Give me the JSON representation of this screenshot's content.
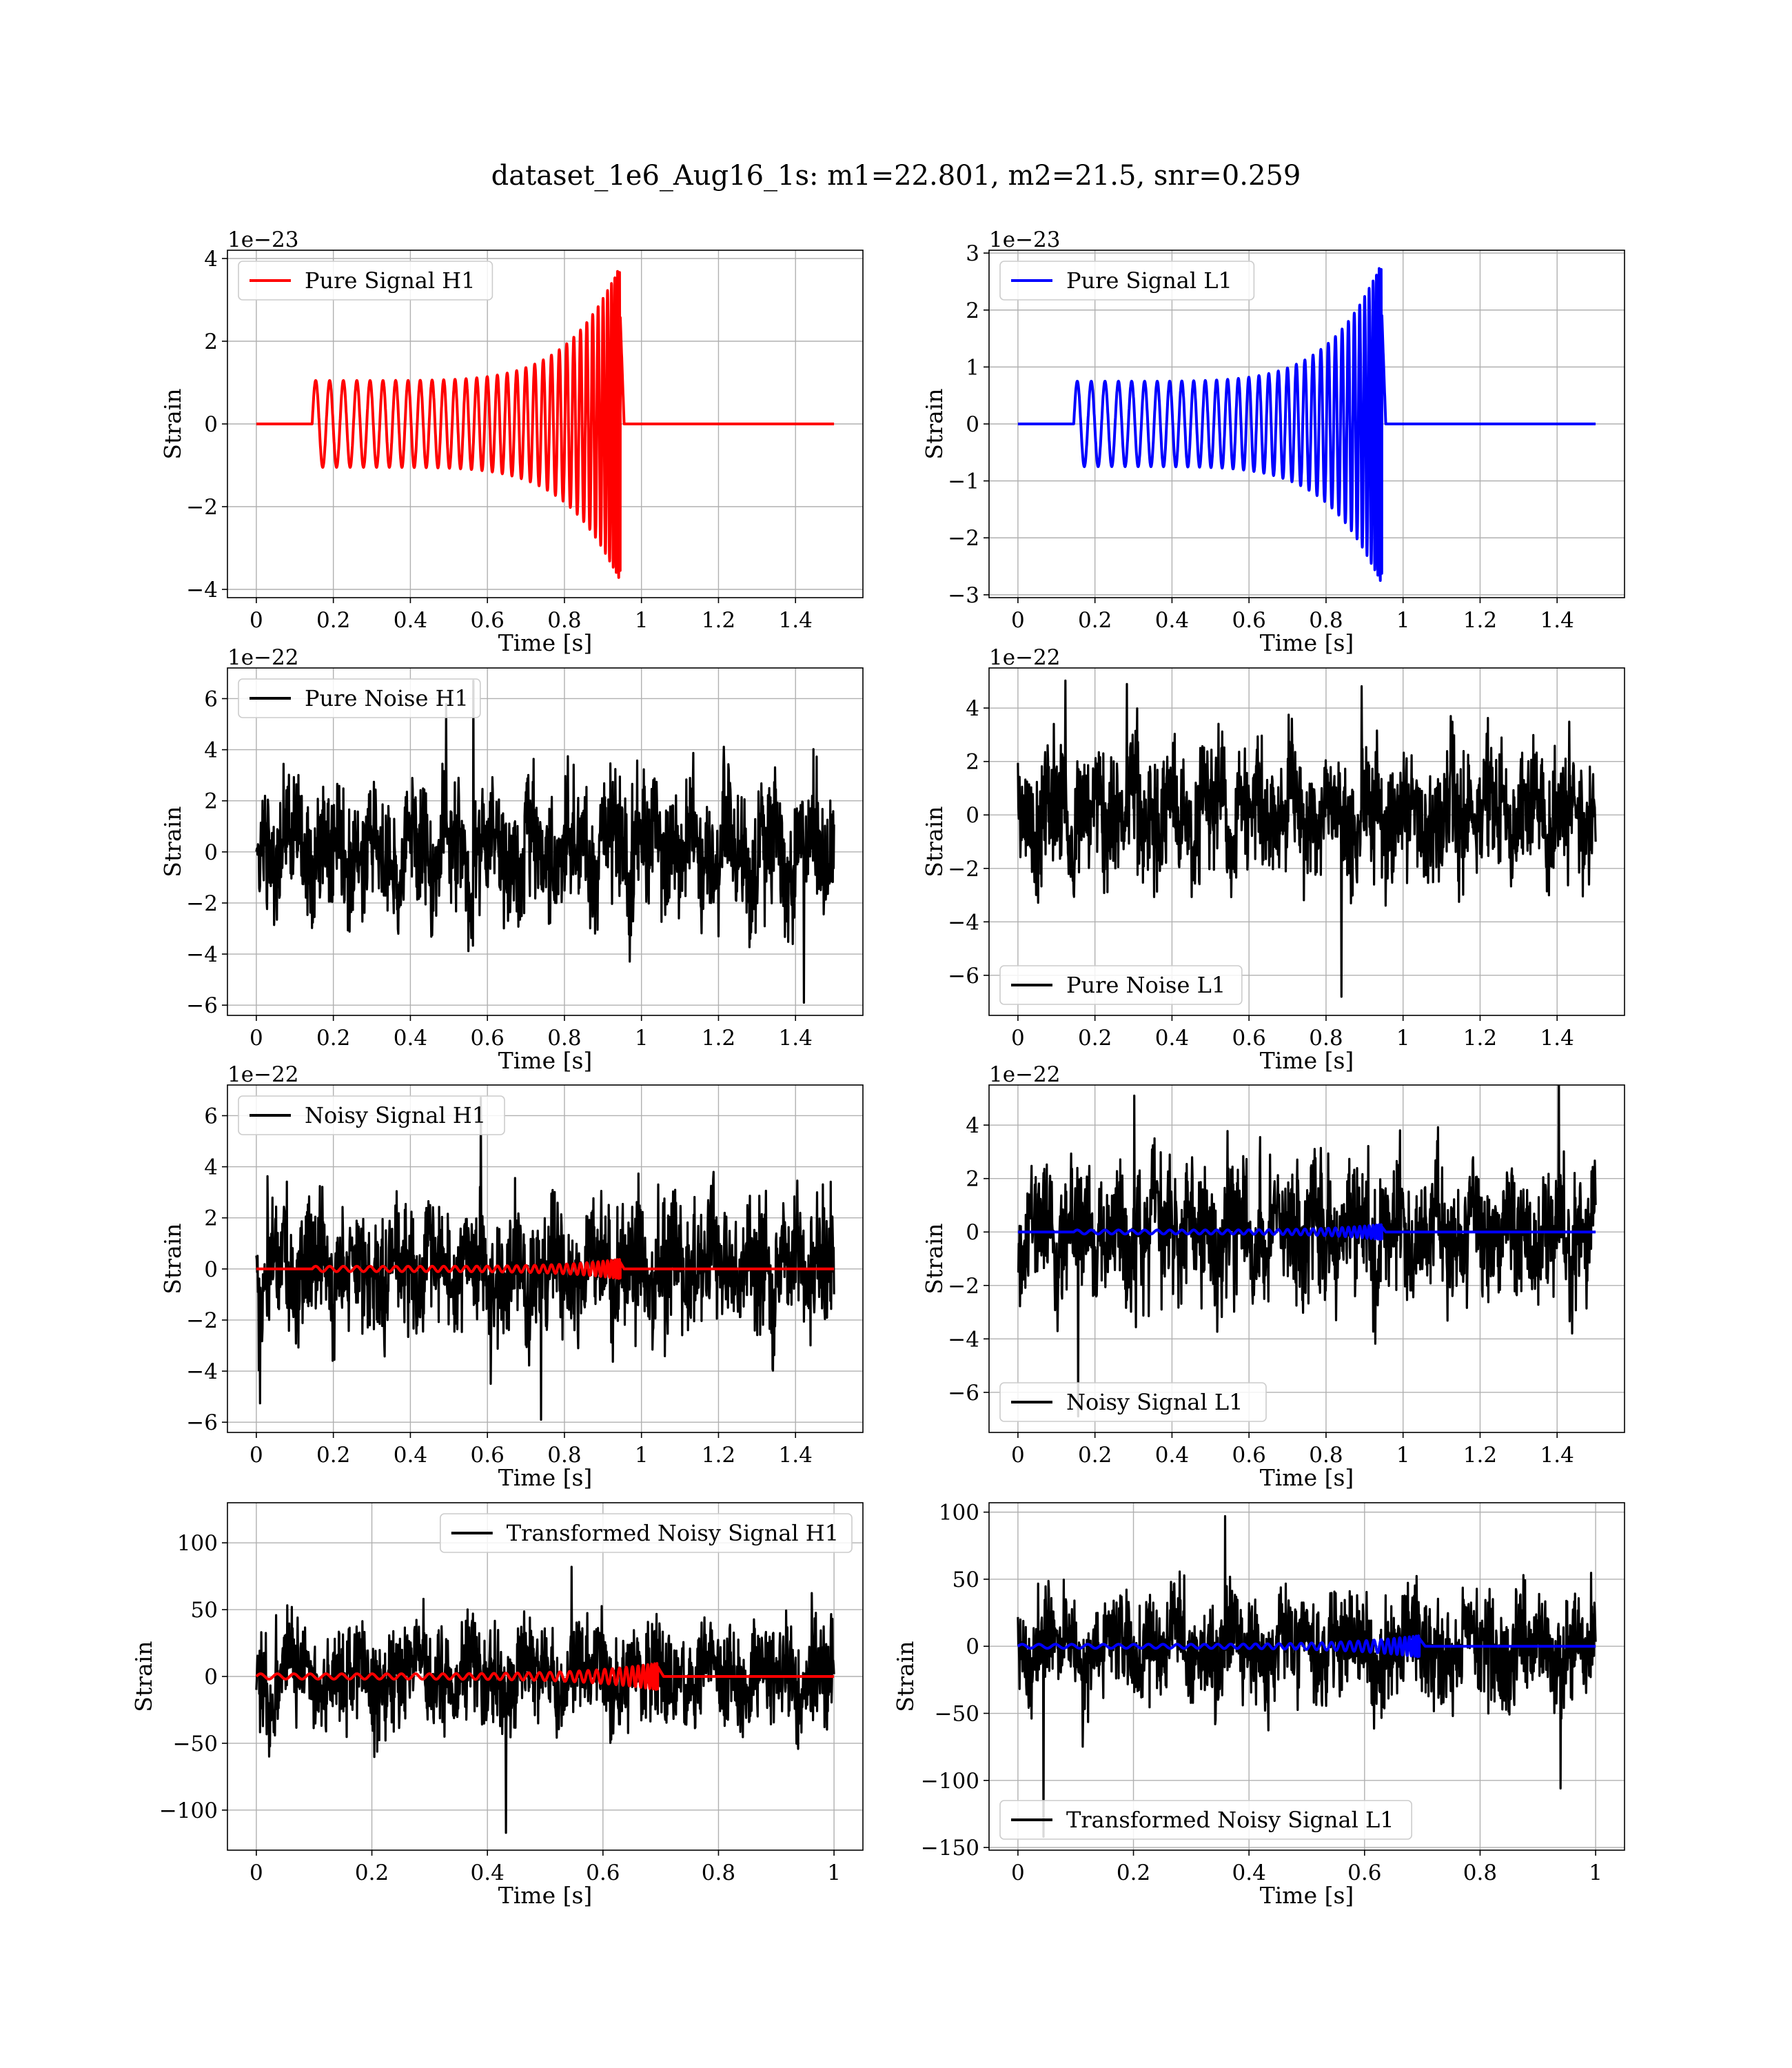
{
  "figure_title": "dataset_1e6_Aug16_1s: m1=22.801, m2=21.5, snr=0.259",
  "colors": {
    "signal_h1": "#ff0000",
    "signal_l1": "#0000ff",
    "noise": "#000000",
    "grid": "#b0b0b0"
  },
  "chart_data": [
    {
      "type": "line",
      "detector": "H1",
      "kind": "signal",
      "xlabel": "Time [s]",
      "ylabel": "Strain",
      "offset": "1e−23",
      "xlim": [
        -0.075,
        1.575
      ],
      "ylim": [
        -4.2,
        4.2
      ],
      "xticks": [
        0.0,
        0.2,
        0.4,
        0.6,
        0.8,
        1.0,
        1.2,
        1.4
      ],
      "yticks": [
        -4,
        -2,
        0,
        2,
        4
      ],
      "legend": {
        "label": "Pure Signal H1",
        "position": "upper-left"
      },
      "series": [
        {
          "name": "Pure Signal H1",
          "color": "#ff0000",
          "t_start": 0.0,
          "t_end": 1.5,
          "onset": 0.145,
          "merger": 0.945,
          "amp_start": 1.05,
          "amp_peak": 3.85,
          "cycles": 35
        }
      ]
    },
    {
      "type": "line",
      "detector": "L1",
      "kind": "signal",
      "xlabel": "Time [s]",
      "ylabel": "Strain",
      "offset": "1e−23",
      "xlim": [
        -0.075,
        1.575
      ],
      "ylim": [
        -3.05,
        3.05
      ],
      "xticks": [
        0.0,
        0.2,
        0.4,
        0.6,
        0.8,
        1.0,
        1.2,
        1.4
      ],
      "yticks": [
        -3,
        -2,
        -1,
        0,
        1,
        2,
        3
      ],
      "legend": {
        "label": "Pure Signal L1",
        "position": "upper-left"
      },
      "series": [
        {
          "name": "Pure Signal L1",
          "color": "#0000ff",
          "t_start": 0.0,
          "t_end": 1.5,
          "onset": 0.145,
          "merger": 0.945,
          "amp_start": 0.75,
          "amp_peak": 2.85,
          "cycles": 35
        }
      ]
    },
    {
      "type": "line",
      "detector": "H1",
      "kind": "noise",
      "xlabel": "Time [s]",
      "ylabel": "Strain",
      "offset": "1e−22",
      "xlim": [
        -0.075,
        1.575
      ],
      "ylim": [
        -6.4,
        7.2
      ],
      "xticks": [
        0.0,
        0.2,
        0.4,
        0.6,
        0.8,
        1.0,
        1.2,
        1.4
      ],
      "yticks": [
        -6,
        -4,
        -2,
        0,
        2,
        4,
        6
      ],
      "legend": {
        "label": "Pure Noise H1",
        "position": "upper-left"
      },
      "series": [
        {
          "name": "Pure Noise H1",
          "color": "#000000",
          "t_start": 0.0,
          "t_end": 1.5,
          "y_min": -5.9,
          "y_max": 6.7,
          "spread": 1.6
        }
      ]
    },
    {
      "type": "line",
      "detector": "L1",
      "kind": "noise",
      "xlabel": "Time [s]",
      "ylabel": "Strain",
      "offset": "1e−22",
      "xlim": [
        -0.075,
        1.575
      ],
      "ylim": [
        -7.5,
        5.5
      ],
      "xticks": [
        0.0,
        0.2,
        0.4,
        0.6,
        0.8,
        1.0,
        1.2,
        1.4
      ],
      "yticks": [
        -6,
        -4,
        -2,
        0,
        2,
        4
      ],
      "legend": {
        "label": "Pure Noise L1",
        "position": "lower-left"
      },
      "series": [
        {
          "name": "Pure Noise L1",
          "color": "#000000",
          "t_start": 0.0,
          "t_end": 1.5,
          "y_min": -6.8,
          "y_max": 4.9,
          "spread": 1.5
        }
      ]
    },
    {
      "type": "line",
      "detector": "H1",
      "kind": "noisy",
      "xlabel": "Time [s]",
      "ylabel": "Strain",
      "offset": "1e−22",
      "xlim": [
        -0.075,
        1.575
      ],
      "ylim": [
        -6.4,
        7.2
      ],
      "xticks": [
        0.0,
        0.2,
        0.4,
        0.6,
        0.8,
        1.0,
        1.2,
        1.4
      ],
      "yticks": [
        -6,
        -4,
        -2,
        0,
        2,
        4,
        6
      ],
      "legend": {
        "label": "Noisy Signal H1",
        "position": "upper-left"
      },
      "series": [
        {
          "name": "Noisy Signal H1",
          "color": "#000000",
          "t_start": 0.0,
          "t_end": 1.5,
          "y_min": -5.9,
          "y_max": 6.7,
          "spread": 1.6
        },
        {
          "color": "#ff0000",
          "t_start": 0.0,
          "t_end": 1.5,
          "onset": 0.145,
          "merger": 0.945,
          "amp_start": 0.105,
          "amp_peak": 0.385,
          "cycles": 35
        }
      ]
    },
    {
      "type": "line",
      "detector": "L1",
      "kind": "noisy",
      "xlabel": "Time [s]",
      "ylabel": "Strain",
      "offset": "1e−22",
      "xlim": [
        -0.075,
        1.575
      ],
      "ylim": [
        -7.5,
        5.5
      ],
      "xticks": [
        0.0,
        0.2,
        0.4,
        0.6,
        0.8,
        1.0,
        1.2,
        1.4
      ],
      "yticks": [
        -6,
        -4,
        -2,
        0,
        2,
        4
      ],
      "legend": {
        "label": "Noisy Signal L1",
        "position": "lower-left"
      },
      "series": [
        {
          "name": "Noisy Signal L1",
          "color": "#000000",
          "t_start": 0.0,
          "t_end": 1.5,
          "y_min": -6.9,
          "y_max": 5.1,
          "spread": 1.5
        },
        {
          "color": "#0000ff",
          "t_start": 0.0,
          "t_end": 1.5,
          "onset": 0.145,
          "merger": 0.945,
          "amp_start": 0.075,
          "amp_peak": 0.285,
          "cycles": 35
        }
      ]
    },
    {
      "type": "line",
      "detector": "H1",
      "kind": "transformed",
      "xlabel": "Time [s]",
      "ylabel": "Strain",
      "offset": "",
      "xlim": [
        -0.05,
        1.05
      ],
      "ylim": [
        -130,
        130
      ],
      "xticks": [
        0.0,
        0.2,
        0.4,
        0.6,
        0.8,
        1.0
      ],
      "yticks": [
        -100,
        -50,
        0,
        50,
        100
      ],
      "legend": {
        "label": "Transformed Noisy Signal H1",
        "position": "upper-right"
      },
      "series": [
        {
          "name": "Transformed Noisy Signal H1",
          "color": "#000000",
          "t_start": 0.0,
          "t_end": 1.0,
          "y_min": -117,
          "y_max": 82,
          "spread": 24
        },
        {
          "color": "#ff0000",
          "t_start": 0.0,
          "t_end": 1.0,
          "onset": 0.0,
          "merger": 0.695,
          "amp_start": 2,
          "amp_peak": 10,
          "cycles": 38
        }
      ]
    },
    {
      "type": "line",
      "detector": "L1",
      "kind": "transformed",
      "xlabel": "Time [s]",
      "ylabel": "Strain",
      "offset": "",
      "xlim": [
        -0.05,
        1.05
      ],
      "ylim": [
        -152,
        107
      ],
      "xticks": [
        0.0,
        0.2,
        0.4,
        0.6,
        0.8,
        1.0
      ],
      "yticks": [
        -150,
        -100,
        -50,
        0,
        50,
        100
      ],
      "legend": {
        "label": "Transformed Noisy Signal L1",
        "position": "lower-left"
      },
      "series": [
        {
          "name": "Transformed Noisy Signal L1",
          "color": "#000000",
          "t_start": 0.0,
          "t_end": 1.0,
          "y_min": -142,
          "y_max": 97,
          "spread": 24
        },
        {
          "color": "#0000ff",
          "t_start": 0.0,
          "t_end": 1.0,
          "onset": 0.0,
          "merger": 0.695,
          "amp_start": 1.5,
          "amp_peak": 8,
          "cycles": 38
        }
      ]
    }
  ]
}
